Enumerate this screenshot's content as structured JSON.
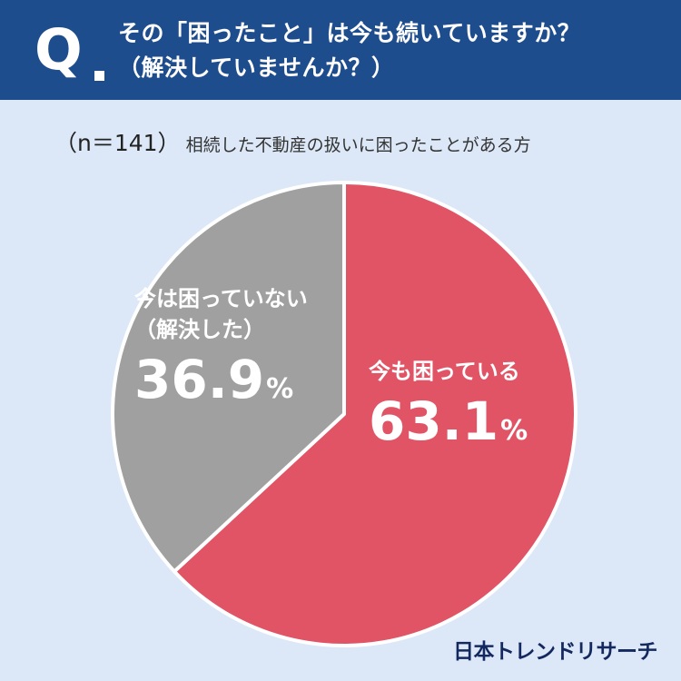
{
  "question": {
    "mark": "Q",
    "text": "その「困ったこと」は今も続いていますか？\n（解決していませんか？）"
  },
  "sample": {
    "n": "（n＝141）",
    "description": "相続した不動産の扱いに困ったことがある方"
  },
  "chart_data": {
    "type": "pie",
    "categories": [
      "今も困っている",
      "今は困っていない\n（解決した）"
    ],
    "values": [
      63.1,
      36.9
    ],
    "unit": "%",
    "colors": [
      "#e05466",
      "#a0a0a0"
    ]
  },
  "labels": {
    "still_troubled": {
      "caption": "今も困っている",
      "value": "63.1",
      "unit": "%"
    },
    "resolved": {
      "caption": "今は困っていない\n（解決した）",
      "value": "36.9",
      "unit": "%"
    }
  },
  "brand": {
    "logo_text": "日本トレンドリサーチ"
  }
}
